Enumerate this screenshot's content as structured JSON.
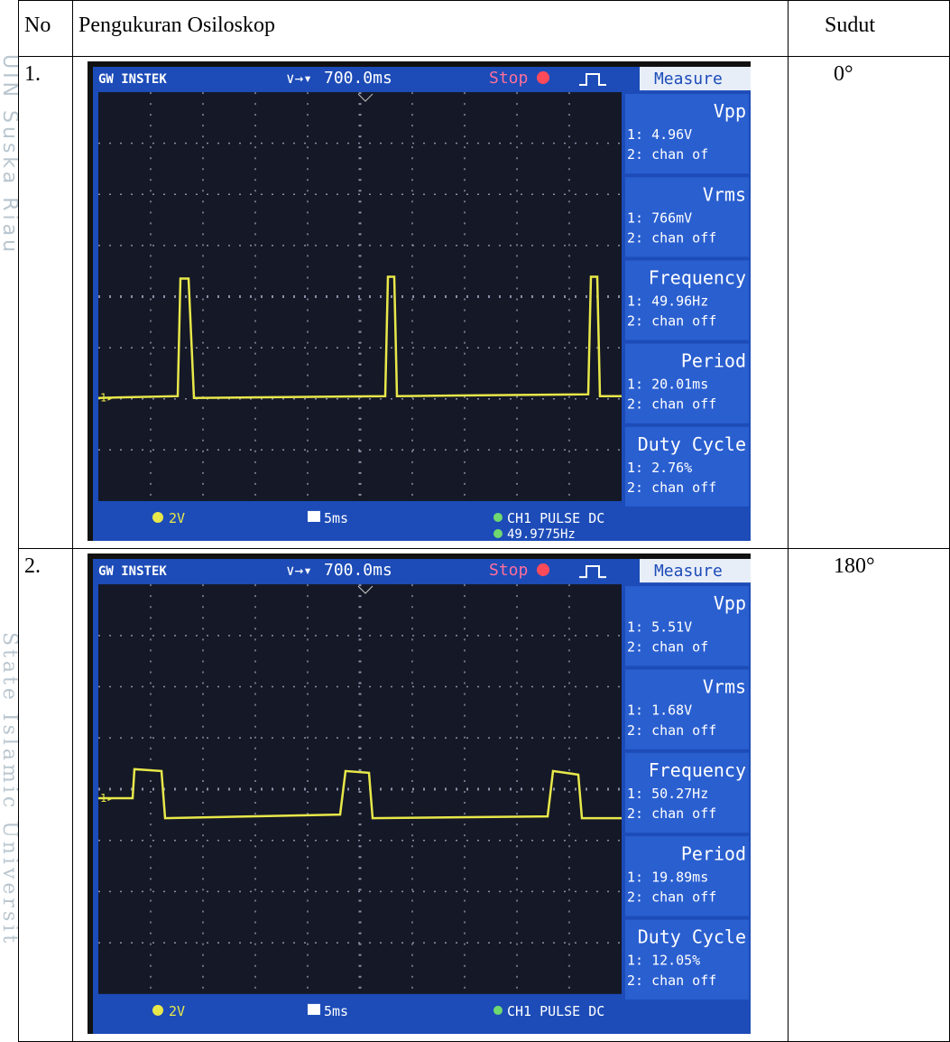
{
  "header": {
    "no": "No",
    "measurement": "Pengukuran Osiloskop",
    "angle": "Sudut"
  },
  "watermark": [
    "UIN Suska Riau",
    "State Islamic Universit"
  ],
  "rows": [
    {
      "no": "1.",
      "angle": "0°",
      "scope": {
        "brand": "GW INSTEK",
        "timebase": "700.0ms",
        "status": "Stop",
        "panel_title": "Measure",
        "measurements": [
          {
            "name": "Vpp",
            "ch1": "1: 4.96V",
            "ch2": "2: chan of"
          },
          {
            "name": "Vrms",
            "ch1": "1: 766mV",
            "ch2": "2: chan off"
          },
          {
            "name": "Frequency",
            "ch1": "1: 49.96Hz",
            "ch2": "2: chan off"
          },
          {
            "name": "Period",
            "ch1": "1: 20.01ms",
            "ch2": "2: chan off"
          },
          {
            "name": "Duty Cycle",
            "ch1": "1: 2.76%",
            "ch2": "2: chan off"
          }
        ],
        "volt_div": "2V",
        "time_div": "5ms",
        "trigger": "CH1   PULSE   DC",
        "trigger_freq": "49.9775Hz"
      }
    },
    {
      "no": "2.",
      "angle": "180°",
      "scope": {
        "brand": "GW INSTEK",
        "timebase": "700.0ms",
        "status": "Stop",
        "panel_title": "Measure",
        "measurements": [
          {
            "name": "Vpp",
            "ch1": "1: 5.51V",
            "ch2": "2: chan of"
          },
          {
            "name": "Vrms",
            "ch1": "1: 1.68V",
            "ch2": "2: chan off"
          },
          {
            "name": "Frequency",
            "ch1": "1: 50.27Hz",
            "ch2": "2: chan off"
          },
          {
            "name": "Period",
            "ch1": "1: 19.89ms",
            "ch2": "2: chan off"
          },
          {
            "name": "Duty Cycle",
            "ch1": "1: 12.05%",
            "ch2": "2: chan off"
          }
        ],
        "volt_div": "2V",
        "time_div": "5ms",
        "trigger": "CH1   PULSE   DC"
      }
    }
  ]
}
